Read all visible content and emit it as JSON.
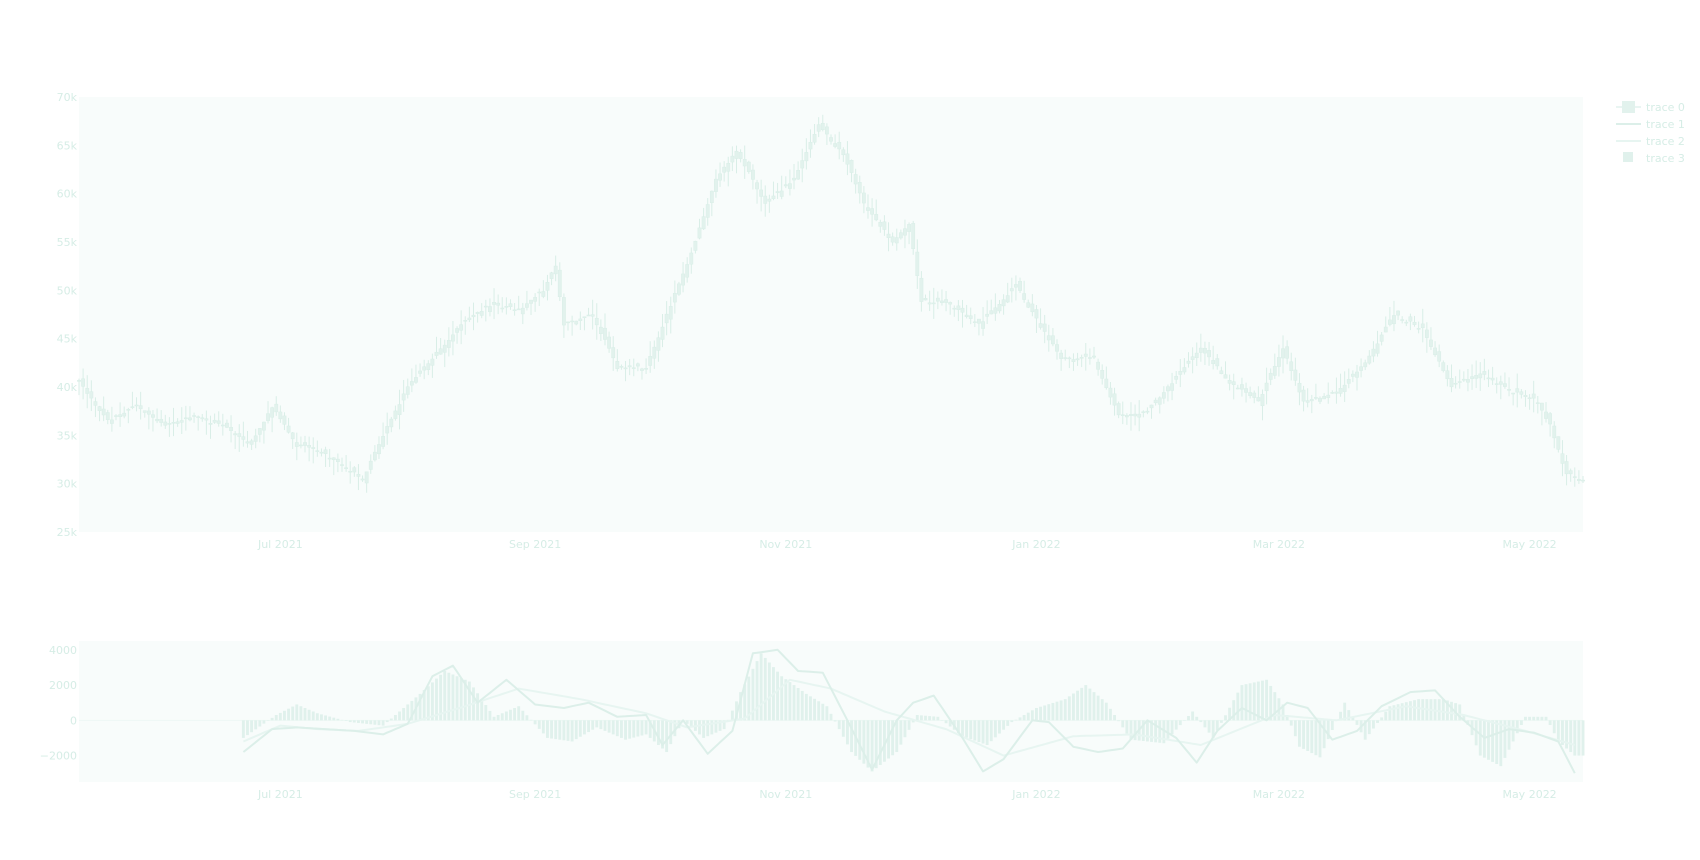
{
  "colors": {
    "plot_bg": "#f8fcfb",
    "candle": "#e2f2ed",
    "candle_line": "#d9eee7",
    "tick_text": "#d6ede6",
    "macd_line": "#dcefe9",
    "signal_line": "#e7f5f1",
    "hist": "#e0f1ec",
    "zero_line": "#eef8f5"
  },
  "legend": [
    {
      "name": "trace 0",
      "kind": "candlestick"
    },
    {
      "name": "trace 1",
      "kind": "line"
    },
    {
      "name": "trace 2",
      "kind": "line"
    },
    {
      "name": "trace 3",
      "kind": "bar"
    }
  ],
  "chart_data": [
    {
      "type": "candlestick",
      "x_range": [
        "2021-05-13",
        "2022-05-14"
      ],
      "xticks": [
        {
          "date": "2021-07-01",
          "label": "Jul 2021"
        },
        {
          "date": "2021-09-01",
          "label": "Sep 2021"
        },
        {
          "date": "2021-11-01",
          "label": "Nov 2021"
        },
        {
          "date": "2022-01-01",
          "label": "Jan 2022"
        },
        {
          "date": "2022-03-01",
          "label": "Mar 2022"
        },
        {
          "date": "2022-05-01",
          "label": "May 2022"
        }
      ],
      "ylim": [
        25000,
        70000
      ],
      "yticks": [
        {
          "value": 70000,
          "label": "70k"
        },
        {
          "value": 65000,
          "label": "65k"
        },
        {
          "value": 60000,
          "label": "60k"
        },
        {
          "value": 55000,
          "label": "55k"
        },
        {
          "value": 50000,
          "label": "50k"
        },
        {
          "value": 45000,
          "label": "45k"
        },
        {
          "value": 40000,
          "label": "40k"
        },
        {
          "value": 35000,
          "label": "35k"
        },
        {
          "value": 30000,
          "label": "30k"
        },
        {
          "value": 25000,
          "label": "25k"
        }
      ],
      "close_points": [
        [
          "2021-05-13",
          40500
        ],
        [
          "2021-05-20",
          36500
        ],
        [
          "2021-05-27",
          38000
        ],
        [
          "2021-06-03",
          36000
        ],
        [
          "2021-06-10",
          37000
        ],
        [
          "2021-06-17",
          36000
        ],
        [
          "2021-06-24",
          34000
        ],
        [
          "2021-06-29",
          38000
        ],
        [
          "2021-07-05",
          34000
        ],
        [
          "2021-07-10",
          33500
        ],
        [
          "2021-07-16",
          32000
        ],
        [
          "2021-07-21",
          30500
        ],
        [
          "2021-07-26",
          35000
        ],
        [
          "2021-08-01",
          40000
        ],
        [
          "2021-08-07",
          43000
        ],
        [
          "2021-08-14",
          46500
        ],
        [
          "2021-08-21",
          48500
        ],
        [
          "2021-08-28",
          48000
        ],
        [
          "2021-09-03",
          50000
        ],
        [
          "2021-09-06",
          52500
        ],
        [
          "2021-09-08",
          46500
        ],
        [
          "2021-09-15",
          47500
        ],
        [
          "2021-09-21",
          42000
        ],
        [
          "2021-09-28",
          42000
        ],
        [
          "2021-10-04",
          48500
        ],
        [
          "2021-10-10",
          55000
        ],
        [
          "2021-10-15",
          61500
        ],
        [
          "2021-10-20",
          64500
        ],
        [
          "2021-10-27",
          59000
        ],
        [
          "2021-11-03",
          61500
        ],
        [
          "2021-11-09",
          67000
        ],
        [
          "2021-11-15",
          64000
        ],
        [
          "2021-11-20",
          59000
        ],
        [
          "2021-11-27",
          55000
        ],
        [
          "2021-12-01",
          57000
        ],
        [
          "2021-12-04",
          49000
        ],
        [
          "2021-12-11",
          48500
        ],
        [
          "2021-12-18",
          46500
        ],
        [
          "2021-12-27",
          50500
        ],
        [
          "2022-01-01",
          47000
        ],
        [
          "2022-01-07",
          43000
        ],
        [
          "2022-01-15",
          43000
        ],
        [
          "2022-01-21",
          37000
        ],
        [
          "2022-01-28",
          37500
        ],
        [
          "2022-02-05",
          41500
        ],
        [
          "2022-02-10",
          44000
        ],
        [
          "2022-02-17",
          40500
        ],
        [
          "2022-02-24",
          38500
        ],
        [
          "2022-03-02",
          44000
        ],
        [
          "2022-03-07",
          38500
        ],
        [
          "2022-03-15",
          39500
        ],
        [
          "2022-03-22",
          42500
        ],
        [
          "2022-03-29",
          47500
        ],
        [
          "2022-04-05",
          46000
        ],
        [
          "2022-04-12",
          40000
        ],
        [
          "2022-04-19",
          41500
        ],
        [
          "2022-04-27",
          39500
        ],
        [
          "2022-05-03",
          38500
        ],
        [
          "2022-05-06",
          36000
        ],
        [
          "2022-05-10",
          31000
        ],
        [
          "2022-05-14",
          30500
        ]
      ]
    },
    {
      "type": "line",
      "x_range": [
        "2021-05-13",
        "2022-05-14"
      ],
      "xticks": [
        {
          "date": "2021-07-01",
          "label": "Jul 2021"
        },
        {
          "date": "2021-09-01",
          "label": "Sep 2021"
        },
        {
          "date": "2021-11-01",
          "label": "Nov 2021"
        },
        {
          "date": "2022-01-01",
          "label": "Jan 2022"
        },
        {
          "date": "2022-03-01",
          "label": "Mar 2022"
        },
        {
          "date": "2022-05-01",
          "label": "May 2022"
        }
      ],
      "ylim": [
        -3500,
        4500
      ],
      "yticks": [
        {
          "value": 4000,
          "label": "4000"
        },
        {
          "value": 2000,
          "label": "2000"
        },
        {
          "value": 0,
          "label": "0"
        },
        {
          "value": -2000,
          "label": "−2000"
        }
      ],
      "macd_start": "2021-06-22",
      "series": [
        {
          "points": [
            [
              "2021-06-22",
              -1800
            ],
            [
              "2021-06-29",
              -500
            ],
            [
              "2021-07-05",
              -400
            ],
            [
              "2021-07-12",
              -500
            ],
            [
              "2021-07-19",
              -600
            ],
            [
              "2021-07-26",
              -800
            ],
            [
              "2021-08-01",
              -200
            ],
            [
              "2021-08-07",
              2500
            ],
            [
              "2021-08-12",
              3100
            ],
            [
              "2021-08-18",
              1000
            ],
            [
              "2021-08-25",
              2300
            ],
            [
              "2021-09-01",
              900
            ],
            [
              "2021-09-08",
              700
            ],
            [
              "2021-09-14",
              1000
            ],
            [
              "2021-09-21",
              200
            ],
            [
              "2021-09-28",
              300
            ],
            [
              "2021-10-02",
              -1400
            ],
            [
              "2021-10-07",
              0
            ],
            [
              "2021-10-13",
              -1900
            ],
            [
              "2021-10-19",
              -600
            ],
            [
              "2021-10-24",
              3800
            ],
            [
              "2021-10-30",
              4000
            ],
            [
              "2021-11-04",
              2800
            ],
            [
              "2021-11-10",
              2700
            ],
            [
              "2021-11-16",
              0
            ],
            [
              "2021-11-22",
              -2800
            ],
            [
              "2021-11-28",
              0
            ],
            [
              "2021-12-02",
              1000
            ],
            [
              "2021-12-07",
              1400
            ],
            [
              "2021-12-14",
              -1000
            ],
            [
              "2021-12-19",
              -2900
            ],
            [
              "2021-12-24",
              -2200
            ],
            [
              "2021-12-31",
              0
            ],
            [
              "2022-01-04",
              -100
            ],
            [
              "2022-01-10",
              -1500
            ],
            [
              "2022-01-16",
              -1800
            ],
            [
              "2022-01-22",
              -1600
            ],
            [
              "2022-01-28",
              0
            ],
            [
              "2022-02-04",
              -1000
            ],
            [
              "2022-02-09",
              -2400
            ],
            [
              "2022-02-14",
              -600
            ],
            [
              "2022-02-20",
              700
            ],
            [
              "2022-02-26",
              0
            ],
            [
              "2022-03-03",
              1000
            ],
            [
              "2022-03-08",
              700
            ],
            [
              "2022-03-14",
              -1100
            ],
            [
              "2022-03-20",
              -600
            ],
            [
              "2022-03-26",
              800
            ],
            [
              "2022-04-02",
              1600
            ],
            [
              "2022-04-08",
              1700
            ],
            [
              "2022-04-14",
              200
            ],
            [
              "2022-04-20",
              -1000
            ],
            [
              "2022-04-26",
              -500
            ],
            [
              "2022-05-02",
              -700
            ],
            [
              "2022-05-08",
              -1200
            ],
            [
              "2022-05-12",
              -3000
            ]
          ]
        },
        {
          "points": [
            [
              "2021-06-22",
              -1200
            ],
            [
              "2021-07-01",
              -300
            ],
            [
              "2021-07-10",
              -500
            ],
            [
              "2021-07-20",
              -600
            ],
            [
              "2021-08-01",
              -200
            ],
            [
              "2021-08-15",
              800
            ],
            [
              "2021-08-28",
              1800
            ],
            [
              "2021-09-12",
              1200
            ],
            [
              "2021-09-28",
              400
            ],
            [
              "2021-10-08",
              -400
            ],
            [
              "2021-10-22",
              100
            ],
            [
              "2021-11-02",
              2300
            ],
            [
              "2021-11-12",
              1800
            ],
            [
              "2021-11-25",
              500
            ],
            [
              "2021-12-10",
              -500
            ],
            [
              "2021-12-24",
              -2000
            ],
            [
              "2022-01-10",
              -900
            ],
            [
              "2022-01-25",
              -800
            ],
            [
              "2022-02-10",
              -1400
            ],
            [
              "2022-02-28",
              300
            ],
            [
              "2022-03-15",
              0
            ],
            [
              "2022-04-01",
              800
            ],
            [
              "2022-04-15",
              300
            ],
            [
              "2022-04-30",
              -600
            ],
            [
              "2022-05-12",
              -1400
            ]
          ]
        },
        {
          "type": "bar",
          "points": [
            [
              "2021-06-22",
              -1000
            ],
            [
              "2021-06-30",
              300
            ],
            [
              "2021-07-05",
              900
            ],
            [
              "2021-07-10",
              400
            ],
            [
              "2021-07-18",
              -100
            ],
            [
              "2021-07-26",
              -300
            ],
            [
              "2021-08-04",
              1500
            ],
            [
              "2021-08-10",
              2800
            ],
            [
              "2021-08-16",
              2200
            ],
            [
              "2021-08-22",
              200
            ],
            [
              "2021-08-28",
              800
            ],
            [
              "2021-09-04",
              -1000
            ],
            [
              "2021-09-10",
              -1200
            ],
            [
              "2021-09-16",
              -400
            ],
            [
              "2021-09-23",
              -1100
            ],
            [
              "2021-09-28",
              -800
            ],
            [
              "2021-10-03",
              -1800
            ],
            [
              "2021-10-07",
              0
            ],
            [
              "2021-10-12",
              -1000
            ],
            [
              "2021-10-17",
              -500
            ],
            [
              "2021-10-21",
              1600
            ],
            [
              "2021-10-26",
              3800
            ],
            [
              "2021-10-31",
              2500
            ],
            [
              "2021-11-06",
              1500
            ],
            [
              "2021-11-11",
              800
            ],
            [
              "2021-11-17",
              -1800
            ],
            [
              "2021-11-22",
              -2900
            ],
            [
              "2021-11-28",
              -1800
            ],
            [
              "2021-12-03",
              300
            ],
            [
              "2021-12-08",
              200
            ],
            [
              "2021-12-14",
              -900
            ],
            [
              "2021-12-20",
              -1400
            ],
            [
              "2021-12-26",
              -100
            ],
            [
              "2022-01-01",
              700
            ],
            [
              "2022-01-08",
              1200
            ],
            [
              "2022-01-13",
              2000
            ],
            [
              "2022-01-18",
              1000
            ],
            [
              "2022-01-24",
              -1100
            ],
            [
              "2022-02-01",
              -1300
            ],
            [
              "2022-02-08",
              500
            ],
            [
              "2022-02-13",
              -1000
            ],
            [
              "2022-02-20",
              2000
            ],
            [
              "2022-02-26",
              2300
            ],
            [
              "2022-03-02",
              900
            ],
            [
              "2022-03-06",
              -1500
            ],
            [
              "2022-03-11",
              -2100
            ],
            [
              "2022-03-17",
              1000
            ],
            [
              "2022-03-22",
              -1100
            ],
            [
              "2022-03-28",
              800
            ],
            [
              "2022-04-04",
              1200
            ],
            [
              "2022-04-10",
              1200
            ],
            [
              "2022-04-14",
              900
            ],
            [
              "2022-04-19",
              -2000
            ],
            [
              "2022-04-24",
              -2600
            ],
            [
              "2022-04-30",
              200
            ],
            [
              "2022-05-05",
              200
            ],
            [
              "2022-05-08",
              -1200
            ],
            [
              "2022-05-12",
              -2000
            ]
          ]
        }
      ]
    }
  ]
}
